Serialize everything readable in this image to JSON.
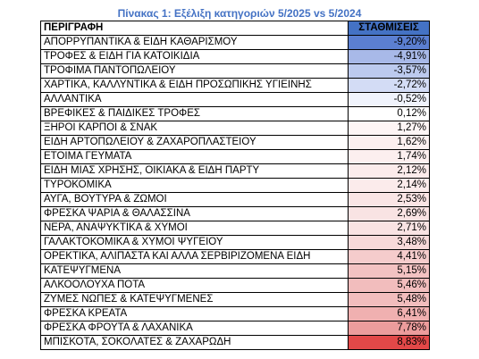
{
  "caption": "Πίνακας 1: Εξέλιξη κατηγοριών 5/2025 vs 5/2024",
  "table": {
    "headers": [
      "ΠΕΡΙΓΡΑΦΗ",
      "ΣΤΑΘΜΙΣΕΙΣ"
    ],
    "header_color": "#4472c4",
    "rows": [
      {
        "label": "ΑΠΟΡΡΥΠΑΝΤΙΚΑ & ΕΙΔΗ ΚΑΘΑΡΙΣΜΟΥ",
        "value": "-9,20%",
        "color": "#5b7fd1"
      },
      {
        "label": "ΤΡΟΦΕΣ & ΕΙΔΗ ΓΙΑ ΚΑΤΟΙΚΙΔΙΑ",
        "value": "-4,91%",
        "color": "#a8b9e8"
      },
      {
        "label": "ΤΡΟΦΙΜΑ ΠΑΝΤΟΠΩΛΕΙΟΥ",
        "value": "-3,57%",
        "color": "#bccaee"
      },
      {
        "label": "ΧΑΡΤΙΚΑ, ΚΑΛΛΥΝΤΙΚΑ & ΕΙΔΗ ΠΡΟΣΩΠΙΚΗΣ ΥΓΙΕΙΝΗΣ",
        "value": "-2,72%",
        "color": "#d3dcf5"
      },
      {
        "label": "ΑΛΛΑΝΤΙΚΑ",
        "value": "-0,52%",
        "color": "#f0f3fc"
      },
      {
        "label": "ΒΡΕΦΙΚΕΣ & ΠΑΙΔΙΚΕΣ ΤΡΟΦΕΣ",
        "value": "0,12%",
        "color": "#ffffff"
      },
      {
        "label": "ΞΗΡΟΙ ΚΑΡΠΟΙ & ΣΝΑΚ",
        "value": "1,27%",
        "color": "#fdf5f5"
      },
      {
        "label": "ΕΙΔΗ ΑΡΤΟΠΩΛΕΙΟΥ & ΖΑΧΑΡΟΠΛΑΣΤΕΙΟΥ",
        "value": "1,62%",
        "color": "#fcf0f0"
      },
      {
        "label": "ΕΤΟΙΜΑ ΓΕΥΜΑΤΑ",
        "value": "1,74%",
        "color": "#fcefef"
      },
      {
        "label": "ΕΙΔΗ ΜΙΑΣ ΧΡΗΣΗΣ, ΟΙΚΙΑΚΑ & ΕΙΔΗ ΠΑΡΤΥ",
        "value": "2,12%",
        "color": "#fbebeb"
      },
      {
        "label": "ΤΥΡΟΚΟΜΙΚΑ",
        "value": "2,14%",
        "color": "#fbebeb"
      },
      {
        "label": "ΑΥΓΑ, ΒΟΥΤΥΡΑ & ΖΩΜΟΙ",
        "value": "2,53%",
        "color": "#fae5e5"
      },
      {
        "label": "ΦΡΕΣΚΑ ΨΑΡΙΑ & ΘΑΛΑΣΣΙΝΑ",
        "value": "2,69%",
        "color": "#f9e3e3"
      },
      {
        "label": "ΝΕΡΑ, ΑΝΑΨΥΚΤΙΚΑ & ΧΥΜΟΙ",
        "value": "2,71%",
        "color": "#f9e3e3"
      },
      {
        "label": "ΓΑΛΑΚΤΟΚΟΜΙΚΑ & ΧΥΜΟΙ ΨΥΓΕΙΟΥ",
        "value": "3,48%",
        "color": "#f7d9d9"
      },
      {
        "label": "ΟΡΕΚΤΙΚΑ, ΑΛΙΠΑΣΤΑ ΚΑΙ ΑΛΛΑ ΣΕΡΒΙΡΙΖΟΜΕΝΑ ΕΙΔΗ",
        "value": "4,41%",
        "color": "#f5cccc"
      },
      {
        "label": "ΚΑΤΕΨΥΓΜΕΝΑ",
        "value": "5,15%",
        "color": "#f3c2c2"
      },
      {
        "label": "ΑΛΚΟΟΛΟΥΧΑ ΠΟΤΑ",
        "value": "5,46%",
        "color": "#f2bdbd"
      },
      {
        "label": "ΖΥΜΕΣ ΝΩΠΕΣ & ΚΑΤΕΨΥΓΜΕΝΕΣ",
        "value": "5,48%",
        "color": "#f2bdbd"
      },
      {
        "label": "ΦΡΕΣΚΑ ΚΡΕΑΤΑ",
        "value": "6,41%",
        "color": "#f0b0b0"
      },
      {
        "label": "ΦΡΕΣΚΑ ΦΡΟΥΤΑ & ΛΑΧΑΝΙΚΑ",
        "value": "7,78%",
        "color": "#ec9c9c"
      },
      {
        "label": "ΜΠΙΣΚΟΤΑ, ΣΟΚΟΛΑΤΕΣ & ΖΑΧΑΡΩΔΗ",
        "value": "8,83%",
        "color": "#e24848"
      }
    ]
  }
}
